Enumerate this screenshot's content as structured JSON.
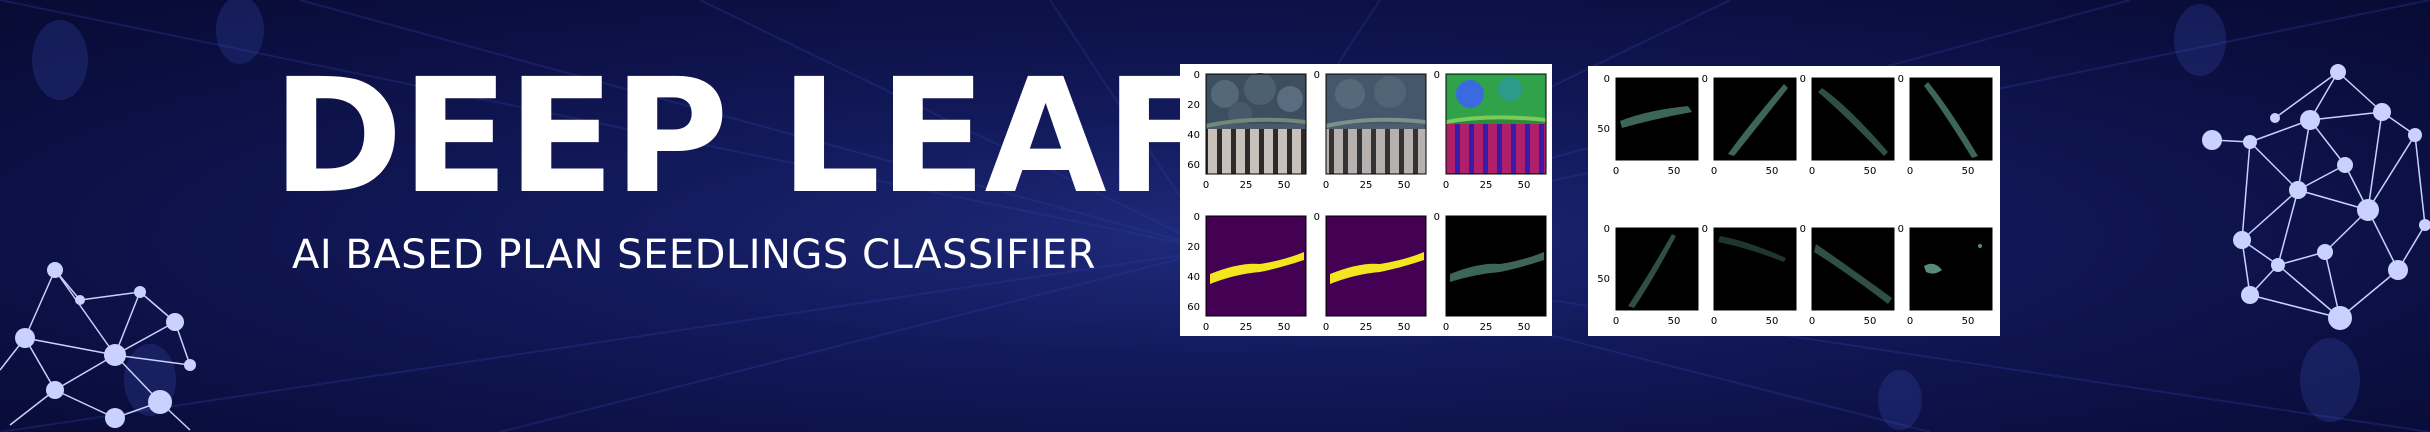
{
  "banner": {
    "title": "DEEP LEAF",
    "subtitle": "AI BASED PLAN SEEDLINGS CLASSIFIER"
  },
  "colors": {
    "background": "#0d1148",
    "text": "#ffffff",
    "mask_fill": "#440154",
    "mask_leaf": "#f4e61e",
    "leaf_dark": "#3e6657"
  },
  "left_figure": {
    "rows": [
      {
        "panels": [
          "original-seedling-image",
          "blurred-seedling-image",
          "hsv-seedling-image"
        ],
        "y_ticks": [
          "0",
          "20",
          "40",
          "60"
        ],
        "x_ticks": [
          "0",
          "25",
          "50"
        ]
      },
      {
        "panels": [
          "viridis-mask",
          "viridis-mask",
          "segmented-leaf"
        ],
        "y_ticks": [
          "0",
          "20",
          "40",
          "60"
        ],
        "x_ticks": [
          "0",
          "25",
          "50"
        ]
      }
    ]
  },
  "right_figure": {
    "rows": [
      {
        "y_ticks": [
          "0",
          "50"
        ],
        "x_ticks": [
          "0",
          "50"
        ]
      },
      {
        "y_ticks": [
          "0",
          "50"
        ],
        "x_ticks": [
          "0",
          "50"
        ]
      }
    ]
  }
}
